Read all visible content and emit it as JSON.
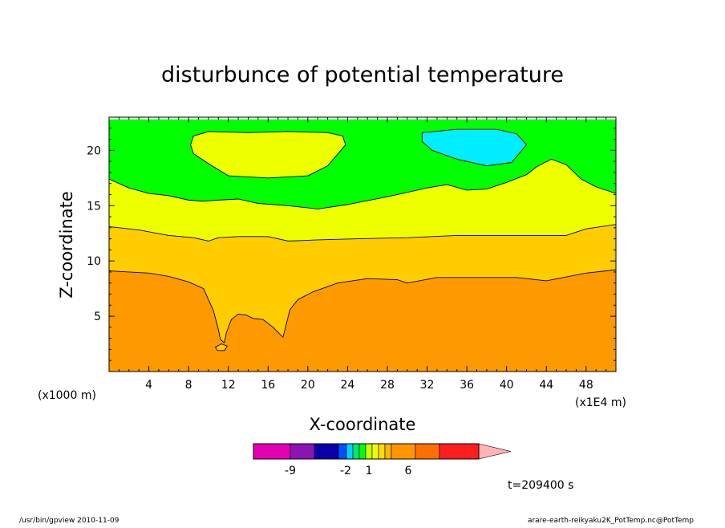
{
  "footer": {
    "left": "/usr/bin/gpview  2010-11-09",
    "right": "arare-earth-reikyaku2K_PotTemp.nc@PotTemp"
  },
  "time_label": "t=209400 s",
  "chart_data": {
    "type": "heatmap",
    "title": "disturbunce of potential temperature",
    "xlabel": "X-coordinate",
    "ylabel": "Z-coordinate",
    "x_unit": "(x1E4 m)",
    "y_unit": "(x1000 m)",
    "xlim": [
      0,
      51
    ],
    "ylim": [
      0,
      23
    ],
    "x_ticks": [
      4,
      8,
      12,
      16,
      20,
      24,
      28,
      32,
      36,
      40,
      44,
      48
    ],
    "y_ticks": [
      5,
      10,
      15,
      20
    ],
    "grid": false,
    "colorbar": {
      "colors": [
        "#e600b4",
        "#8c14b4",
        "#0a00aa",
        "#0050ff",
        "#00d2ff",
        "#00e678",
        "#00ff00",
        "#c8ff00",
        "#f0ff00",
        "#ffdc00",
        "#ffb400",
        "#ff9600",
        "#ff6e00",
        "#ff1e1e",
        "#ff7878",
        "#ffb4b4"
      ],
      "tick_labels": [
        "-9",
        "-2",
        "1",
        "6"
      ]
    },
    "regions": [
      {
        "name": "orange",
        "color": "#ff9900",
        "boundary_top": [
          [
            0,
            9.1
          ],
          [
            4,
            8.9
          ],
          [
            6,
            8.6
          ],
          [
            8,
            8.1
          ],
          [
            9.5,
            7.5
          ],
          [
            10.5,
            5.5
          ],
          [
            11,
            3.8
          ],
          [
            11.2,
            2.9
          ],
          [
            11.6,
            2.6
          ],
          [
            11.8,
            3.5
          ],
          [
            12.3,
            4.7
          ],
          [
            13,
            5.2
          ],
          [
            13.8,
            5.1
          ],
          [
            14.5,
            4.8
          ],
          [
            15.5,
            4.7
          ],
          [
            16.5,
            4.0
          ],
          [
            17.5,
            3.1
          ],
          [
            18.2,
            5.6
          ],
          [
            19,
            6.5
          ],
          [
            20.5,
            7.2
          ],
          [
            23,
            8.0
          ],
          [
            26,
            8.4
          ],
          [
            29,
            8.3
          ],
          [
            30,
            8.0
          ],
          [
            33,
            8.5
          ],
          [
            37,
            8.5
          ],
          [
            41,
            8.5
          ],
          [
            44,
            8.2
          ],
          [
            48,
            8.9
          ],
          [
            51,
            9.2
          ]
        ]
      },
      {
        "name": "light-orange",
        "color": "#ffcc00",
        "boundary_top": [
          [
            0,
            13.1
          ],
          [
            3,
            12.8
          ],
          [
            6,
            12.3
          ],
          [
            8.5,
            12.1
          ],
          [
            10,
            11.8
          ],
          [
            11,
            12.1
          ],
          [
            13,
            12.2
          ],
          [
            16,
            12.2
          ],
          [
            18,
            11.8
          ],
          [
            21,
            11.9
          ],
          [
            25,
            12.0
          ],
          [
            30,
            12.1
          ],
          [
            35,
            12.3
          ],
          [
            40,
            12.3
          ],
          [
            46,
            12.3
          ],
          [
            48,
            12.9
          ],
          [
            51,
            13.3
          ]
        ]
      },
      {
        "name": "yellow",
        "color": "#eeff00",
        "boundary_top": [
          [
            0,
            17.4
          ],
          [
            2,
            16.6
          ],
          [
            4,
            16.1
          ],
          [
            6,
            15.9
          ],
          [
            8,
            15.5
          ],
          [
            9.5,
            15.4
          ],
          [
            11,
            15.5
          ],
          [
            13,
            15.6
          ],
          [
            15,
            15.2
          ],
          [
            18,
            15.0
          ],
          [
            21,
            14.7
          ],
          [
            24,
            15.1
          ],
          [
            28,
            15.8
          ],
          [
            32,
            16.6
          ],
          [
            34,
            16.9
          ],
          [
            36,
            16.4
          ],
          [
            38,
            16.5
          ],
          [
            40,
            17.1
          ],
          [
            42,
            17.8
          ],
          [
            43,
            18.5
          ],
          [
            44.5,
            19.2
          ],
          [
            46,
            18.7
          ],
          [
            47.5,
            17.4
          ],
          [
            49,
            16.7
          ],
          [
            51,
            16.1
          ]
        ]
      },
      {
        "name": "green",
        "color": "#00ff00",
        "boundary_top": [
          [
            0,
            22.8
          ],
          [
            51,
            22.8
          ]
        ]
      }
    ],
    "contours": [
      {
        "name": "warm-blob",
        "level": "yellow",
        "color": "#eeff00",
        "points": [
          [
            8.5,
            21.3
          ],
          [
            10,
            21.7
          ],
          [
            14,
            21.6
          ],
          [
            18,
            21.7
          ],
          [
            22,
            21.6
          ],
          [
            23.5,
            21.3
          ],
          [
            23.8,
            20.5
          ],
          [
            22,
            18.6
          ],
          [
            20,
            17.7
          ],
          [
            16,
            17.5
          ],
          [
            12,
            17.7
          ],
          [
            10,
            18.8
          ],
          [
            8.5,
            19.7
          ],
          [
            8.2,
            20.5
          ]
        ]
      },
      {
        "name": "cool-blob",
        "level": "cyan",
        "color": "#00eeff",
        "points": [
          [
            31.5,
            21.6
          ],
          [
            35,
            21.9
          ],
          [
            39,
            21.9
          ],
          [
            41,
            21.5
          ],
          [
            42,
            20.5
          ],
          [
            40.5,
            18.9
          ],
          [
            38,
            18.6
          ],
          [
            35,
            19.2
          ],
          [
            32.5,
            20.0
          ],
          [
            31.5,
            20.8
          ]
        ]
      },
      {
        "name": "small-blob",
        "level": "light-orange",
        "color": "#ffcc00",
        "points": [
          [
            10.7,
            2.2
          ],
          [
            11.3,
            2.5
          ],
          [
            11.9,
            2.3
          ],
          [
            11.6,
            1.9
          ],
          [
            10.9,
            1.9
          ]
        ]
      }
    ]
  }
}
